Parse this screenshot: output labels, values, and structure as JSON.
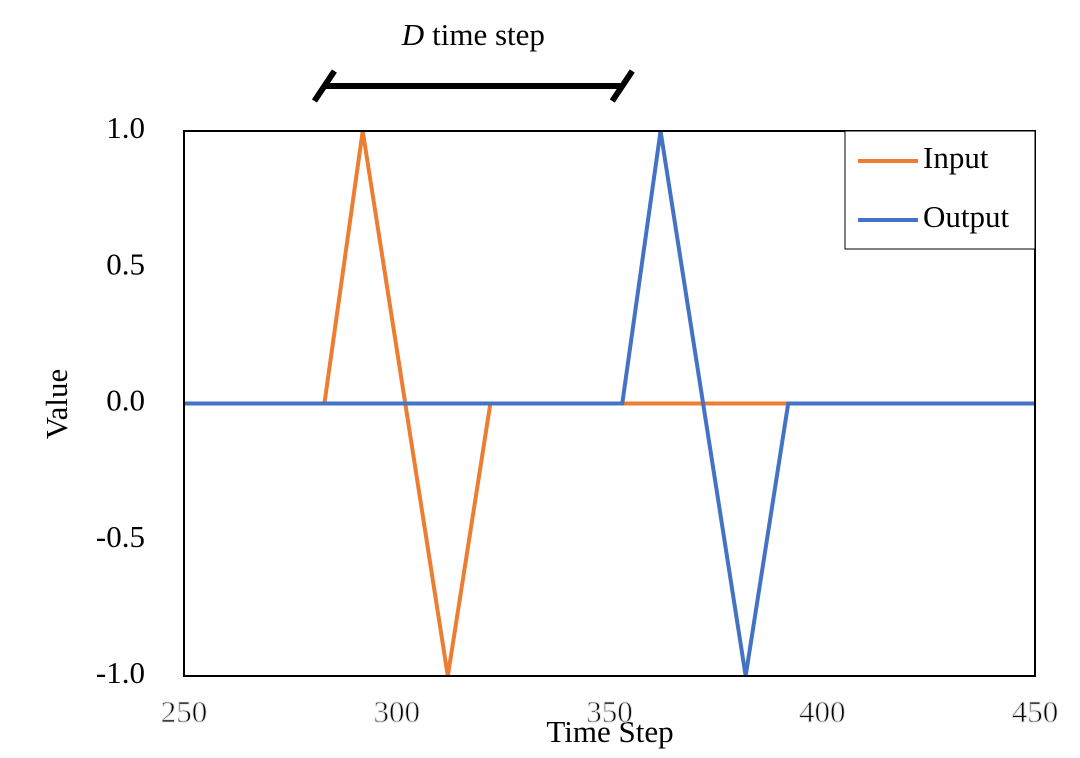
{
  "chart_data": {
    "type": "line",
    "x_label": "Time Step",
    "y_label": "Value",
    "annotation": {
      "italic": "D",
      "text": "time step",
      "x": [
        283,
        353
      ]
    },
    "xlim": [
      250,
      450
    ],
    "xticks": [
      250,
      300,
      350,
      400,
      450
    ],
    "ylim": [
      -1,
      1
    ],
    "yticks": [
      {
        "value": -1,
        "label": "-1.0"
      },
      {
        "value": -0.5,
        "label": "-0.5"
      },
      {
        "value": 0,
        "label": "0.0"
      },
      {
        "value": 0.5,
        "label": "0.5"
      },
      {
        "value": 1,
        "label": "1.0"
      }
    ],
    "legend": "upper right",
    "series": [
      {
        "name": "Input",
        "color": "#ed7d31",
        "x": [
          250,
          283,
          292,
          312,
          322,
          450
        ],
        "values": [
          0,
          0,
          1,
          -1,
          0,
          0
        ]
      },
      {
        "name": "Output",
        "color": "#4472c4",
        "x": [
          250,
          353,
          362,
          382,
          392,
          450
        ],
        "values": [
          0,
          0,
          1,
          -1,
          0,
          0
        ]
      }
    ]
  }
}
